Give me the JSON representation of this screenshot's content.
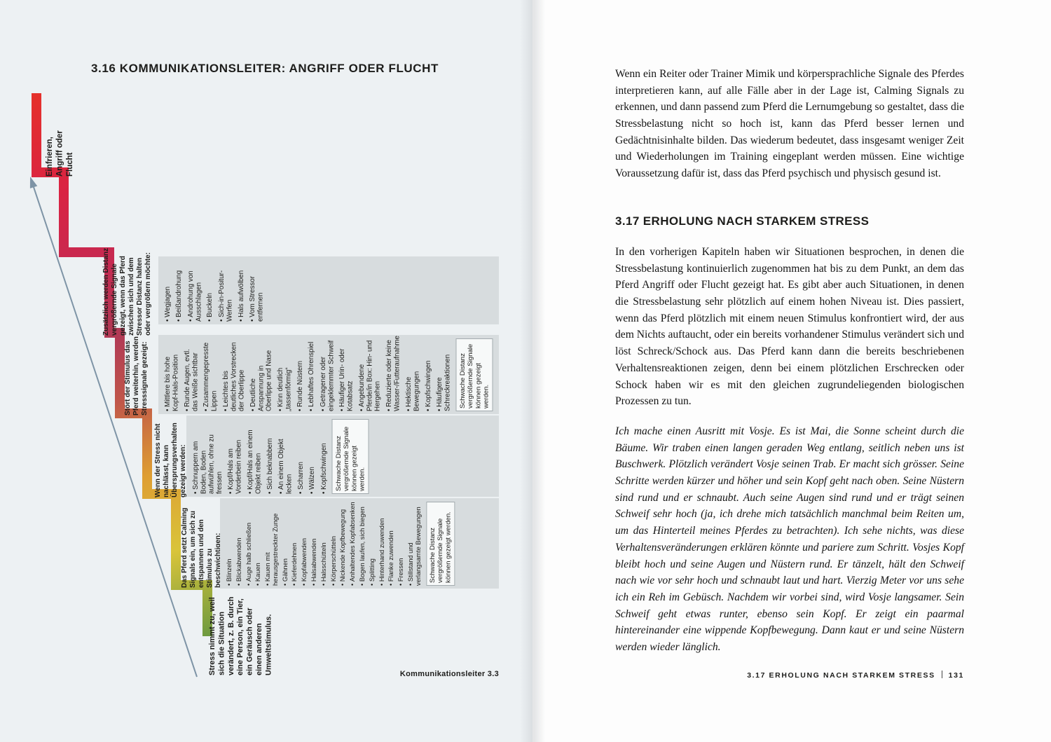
{
  "colors": {
    "page_left_bg": "#edf1f3",
    "band_bg": "#d7dcde",
    "ladder_green": "#6e9a40",
    "ladder_yellow": "#d9c43a",
    "ladder_orange": "#de9e33",
    "ladder_crimson": "#c62a51",
    "ladder_red": "#e5312b",
    "arrow_gray": "#7e94a6"
  },
  "left_page": {
    "title": "3.16 KOMMUNIKATIONSLEITER: ANGRIFF ODER FLUCHT",
    "figure_caption": "Kommunikationsleiter 3.3",
    "ladder": {
      "apex_label": "Einfrieren,\nAngriff oder\nFlucht",
      "base_label": "Stress nimmt zu, weil sich die Situation verändert, z. B. durch eine Person, ein Tier, ein Geräusch oder einen anderen Umweltstimulus.",
      "rows": [
        {
          "header": "Zusätzlich werden Distanz vergrößernde Signale gezeigt, wenn das Pferd zwischen sich und dem Stressor Distanz halten oder vergrößern möchte:",
          "items": [
            "Wegjagen",
            "Beißandrohung",
            "Androhung von Ausschlagen",
            "Buckeln",
            "Sich-in-Positur-Werfen",
            "Hals aufwölben",
            "Vom Stressor entfernen"
          ]
        },
        {
          "header": "Stört der Stimulus das Pferd weiterhin, werden Stresssignale gezeigt:",
          "items": [
            "Mittlere bis hohe Kopf-Hals-Position",
            "Runde Augen, evtl. das Weiße sichtbar",
            "Zusammengepresste Lippen",
            "Leichtes bis deutliches Vorstrecken der Oberlippe",
            "Deutliche Anspannung in Oberlippe und Nase",
            "Kinn deutlich „tassenförmig“",
            "Runde Nüstern",
            "Lebhaftes Ohrenspiel",
            "Getragener oder eingeklemmter Schweif",
            "Häufiger Urin- oder Kotabsatz",
            "Angebundene Pferde/in Box: Hin- und Hergehen",
            "Reduzierte oder keine Wasser-/Futteraufnahme",
            "Hektische Bewegungen",
            "Kopfschwingen",
            "Häufigere Schreckreaktionen"
          ],
          "note": "Schwache Distanz vergrößernde Signale können gezeigt werden."
        },
        {
          "header": "Wenn der Stress nicht nachlässt, kann Übersprungsverhalten gezeigt werden:",
          "items": [
            "Schnuppern am Boden, Boden aufwühlen, ohne zu fressen",
            "Kopf/Hals am Vorderbein reiben",
            "Kopf/Hals an einem Objekt reiben",
            "Sich beknabbern",
            "An einem Objekt lecken",
            "Scharren",
            "Wälzen",
            "Kopfschwingen"
          ],
          "note": "Schwache Distanz vergrößernde Signale können gezeigt werden."
        },
        {
          "header": "Das Pferd setzt Calming Signals ein, um sich zu entspannen und den Stimulus zu beschwichtigen:",
          "items": [
            "Blinzeln",
            "Blickabwenden",
            "Auge halb schließen",
            "Kauen",
            "Kauen mit herausgestreckter Zunge",
            "Gähnen",
            "Kieferdehnen",
            "Kopfabwenden",
            "Halsabwenden",
            "Halsschütteln",
            "Körperschütteln",
            "Nickende Kopfbewegung",
            "Anhaltendes Kopfabsenken",
            "Bogen laufen, sich biegen",
            "Splitting",
            "Hinterhand zuwenden",
            "Flanke zuwenden",
            "Fressen",
            "Stillstand und verlangsamte Bewegungen"
          ],
          "note": "Schwache Distanz vergrößernde Signale können gezeigt werden."
        }
      ]
    }
  },
  "right_page": {
    "paragraph_1": "Wenn ein Reiter oder Trainer Mimik und körpersprachliche Signale des Pferdes interpretieren kann, auf alle Fälle aber in der Lage ist, Calming Signals zu erkennen, und dann passend zum Pferd die Lernumgebung so gestaltet, dass die Stressbelastung nicht so hoch ist, kann das Pferd besser lernen und Gedächtnisinhalte bilden. Das wiederum bedeutet, dass insgesamt weniger Zeit und Wiederholungen im Training eingeplant werden müssen. Eine wichtige Voraussetzung dafür ist, dass das Pferd psychisch und physisch gesund ist.",
    "section_heading": "3.17 ERHOLUNG NACH STARKEM STRESS",
    "paragraph_2": "In den vorherigen Kapiteln haben wir Situationen besprochen, in denen die Stressbelastung kontinuierlich zugenommen hat bis zu dem Punkt, an dem das Pferd Angriff oder Flucht gezeigt hat. Es gibt aber auch Situationen, in denen die Stressbelastung sehr plötzlich auf einem hohen Niveau ist. Dies passiert, wenn das Pferd plötzlich mit einem neuen Stimulus konfrontiert wird, der aus dem Nichts auftaucht, oder ein bereits vorhandener Stimulus verändert sich und löst Schreck/Schock aus. Das Pferd kann dann die bereits beschriebenen Verhaltensreaktionen zeigen, denn bei einem plötzlichen Erschrecken oder Schock haben wir es mit den gleichen zugrundeliegenden biologischen Prozessen zu tun.",
    "paragraph_3": "Ich mache einen Ausritt mit Vosje. Es ist Mai, die Sonne scheint durch die Bäume. Wir traben einen langen geraden Weg entlang, seitlich neben uns ist Buschwerk. Plötzlich verändert Vosje seinen Trab. Er macht sich grösser. Seine Schritte werden kürzer und höher und sein Kopf geht nach oben. Seine Nüstern sind rund und er schnaubt. Auch seine Augen sind rund und er trägt seinen Schweif sehr hoch (ja, ich drehe mich tatsächlich manchmal beim Reiten um, um das Hinterteil meines Pferdes zu betrachten). Ich sehe nichts, was diese Verhaltensveränderungen erklären könnte und pariere zum Schritt. Vosjes Kopf bleibt hoch und seine Augen und Nüstern rund. Er tänzelt, hält den Schweif nach wie vor sehr hoch und schnaubt laut und hart. Vierzig Meter vor uns sehe ich ein Reh im Gebüsch. Nachdem wir vorbei sind, wird Vosje langsamer. Sein Schweif geht etwas runter, ebenso sein Kopf. Er zeigt ein paarmal hintereinander eine wippende Kopfbewegung. Dann kaut er und seine Nüstern werden wieder länglich.",
    "footer": {
      "label": "3.17 ERHOLUNG NACH STARKEM STRESS",
      "page_number": "131"
    }
  }
}
